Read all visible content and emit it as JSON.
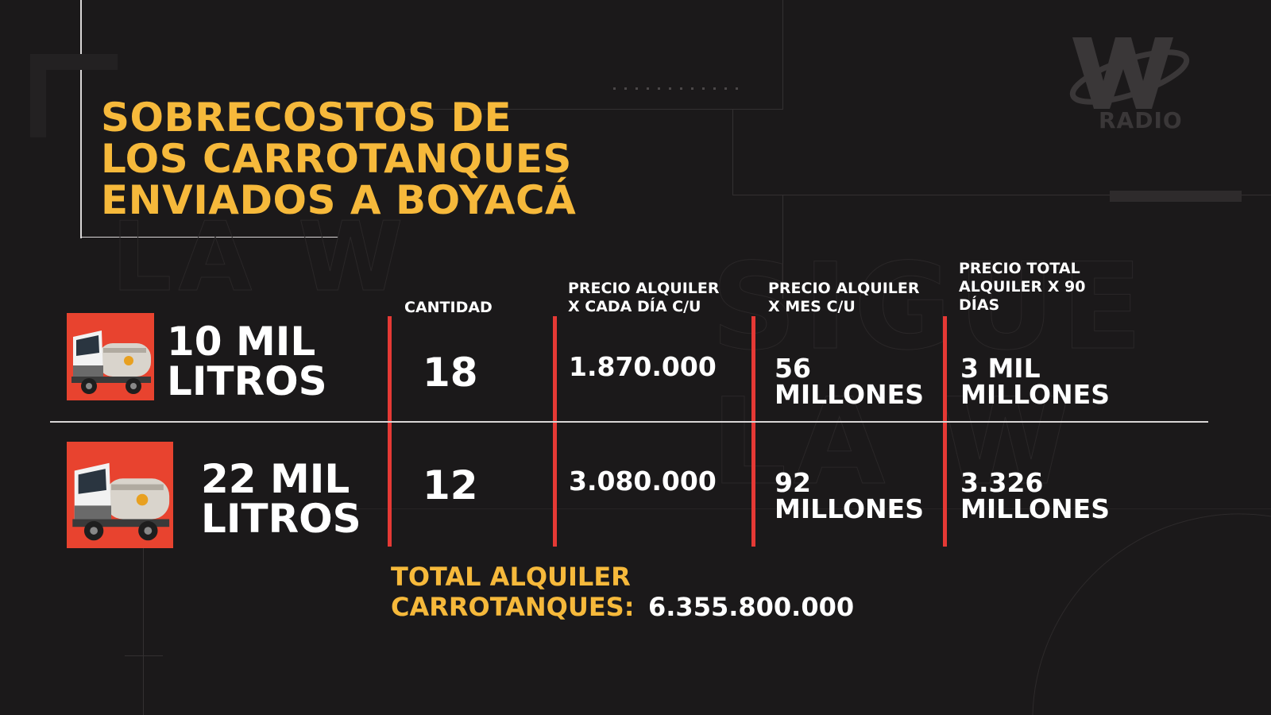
{
  "title": {
    "line1": "SOBRECOSTOS DE",
    "line2": "LOS CARROTANQUES",
    "line3": "ENVIADOS A BOYACÁ"
  },
  "logo": {
    "icon": "w-radio-logo",
    "text": "RADIO"
  },
  "table": {
    "headers": {
      "cantidad": "CANTIDAD",
      "dia_line1": "PRECIO ALQUILER",
      "dia_line2": "X CADA DÍA C/U",
      "mes_line1": "PRECIO ALQUILER",
      "mes_line2": "X MES C/U",
      "total_line1": "PRECIO TOTAL",
      "total_line2": "ALQUILER X 90",
      "total_line3": "DÍAS"
    },
    "rows": [
      {
        "icon": "water-truck-icon",
        "size_line1": "10 MIL",
        "size_line2": "LITROS",
        "cantidad": "18",
        "precio_dia": "1.870.000",
        "precio_mes_line1": "56",
        "precio_mes_line2": "MILLONES",
        "total_line1": "3 MIL",
        "total_line2": "MILLONES"
      },
      {
        "icon": "water-truck-icon",
        "size_line1": "22 MIL",
        "size_line2": "LITROS",
        "cantidad": "12",
        "precio_dia": "3.080.000",
        "precio_mes_line1": "92",
        "precio_mes_line2": "MILLONES",
        "total_line1": "3.326",
        "total_line2": "MILLONES"
      }
    ]
  },
  "total": {
    "label_line1": "TOTAL ALQUILER",
    "label_line2": "CARROTANQUES:",
    "value": "6.355.800.000"
  },
  "colors": {
    "background": "#1b191a",
    "accent_yellow": "#f6b93b",
    "accent_red": "#e53935",
    "truck_box": "#e8432f",
    "text": "#ffffff"
  }
}
